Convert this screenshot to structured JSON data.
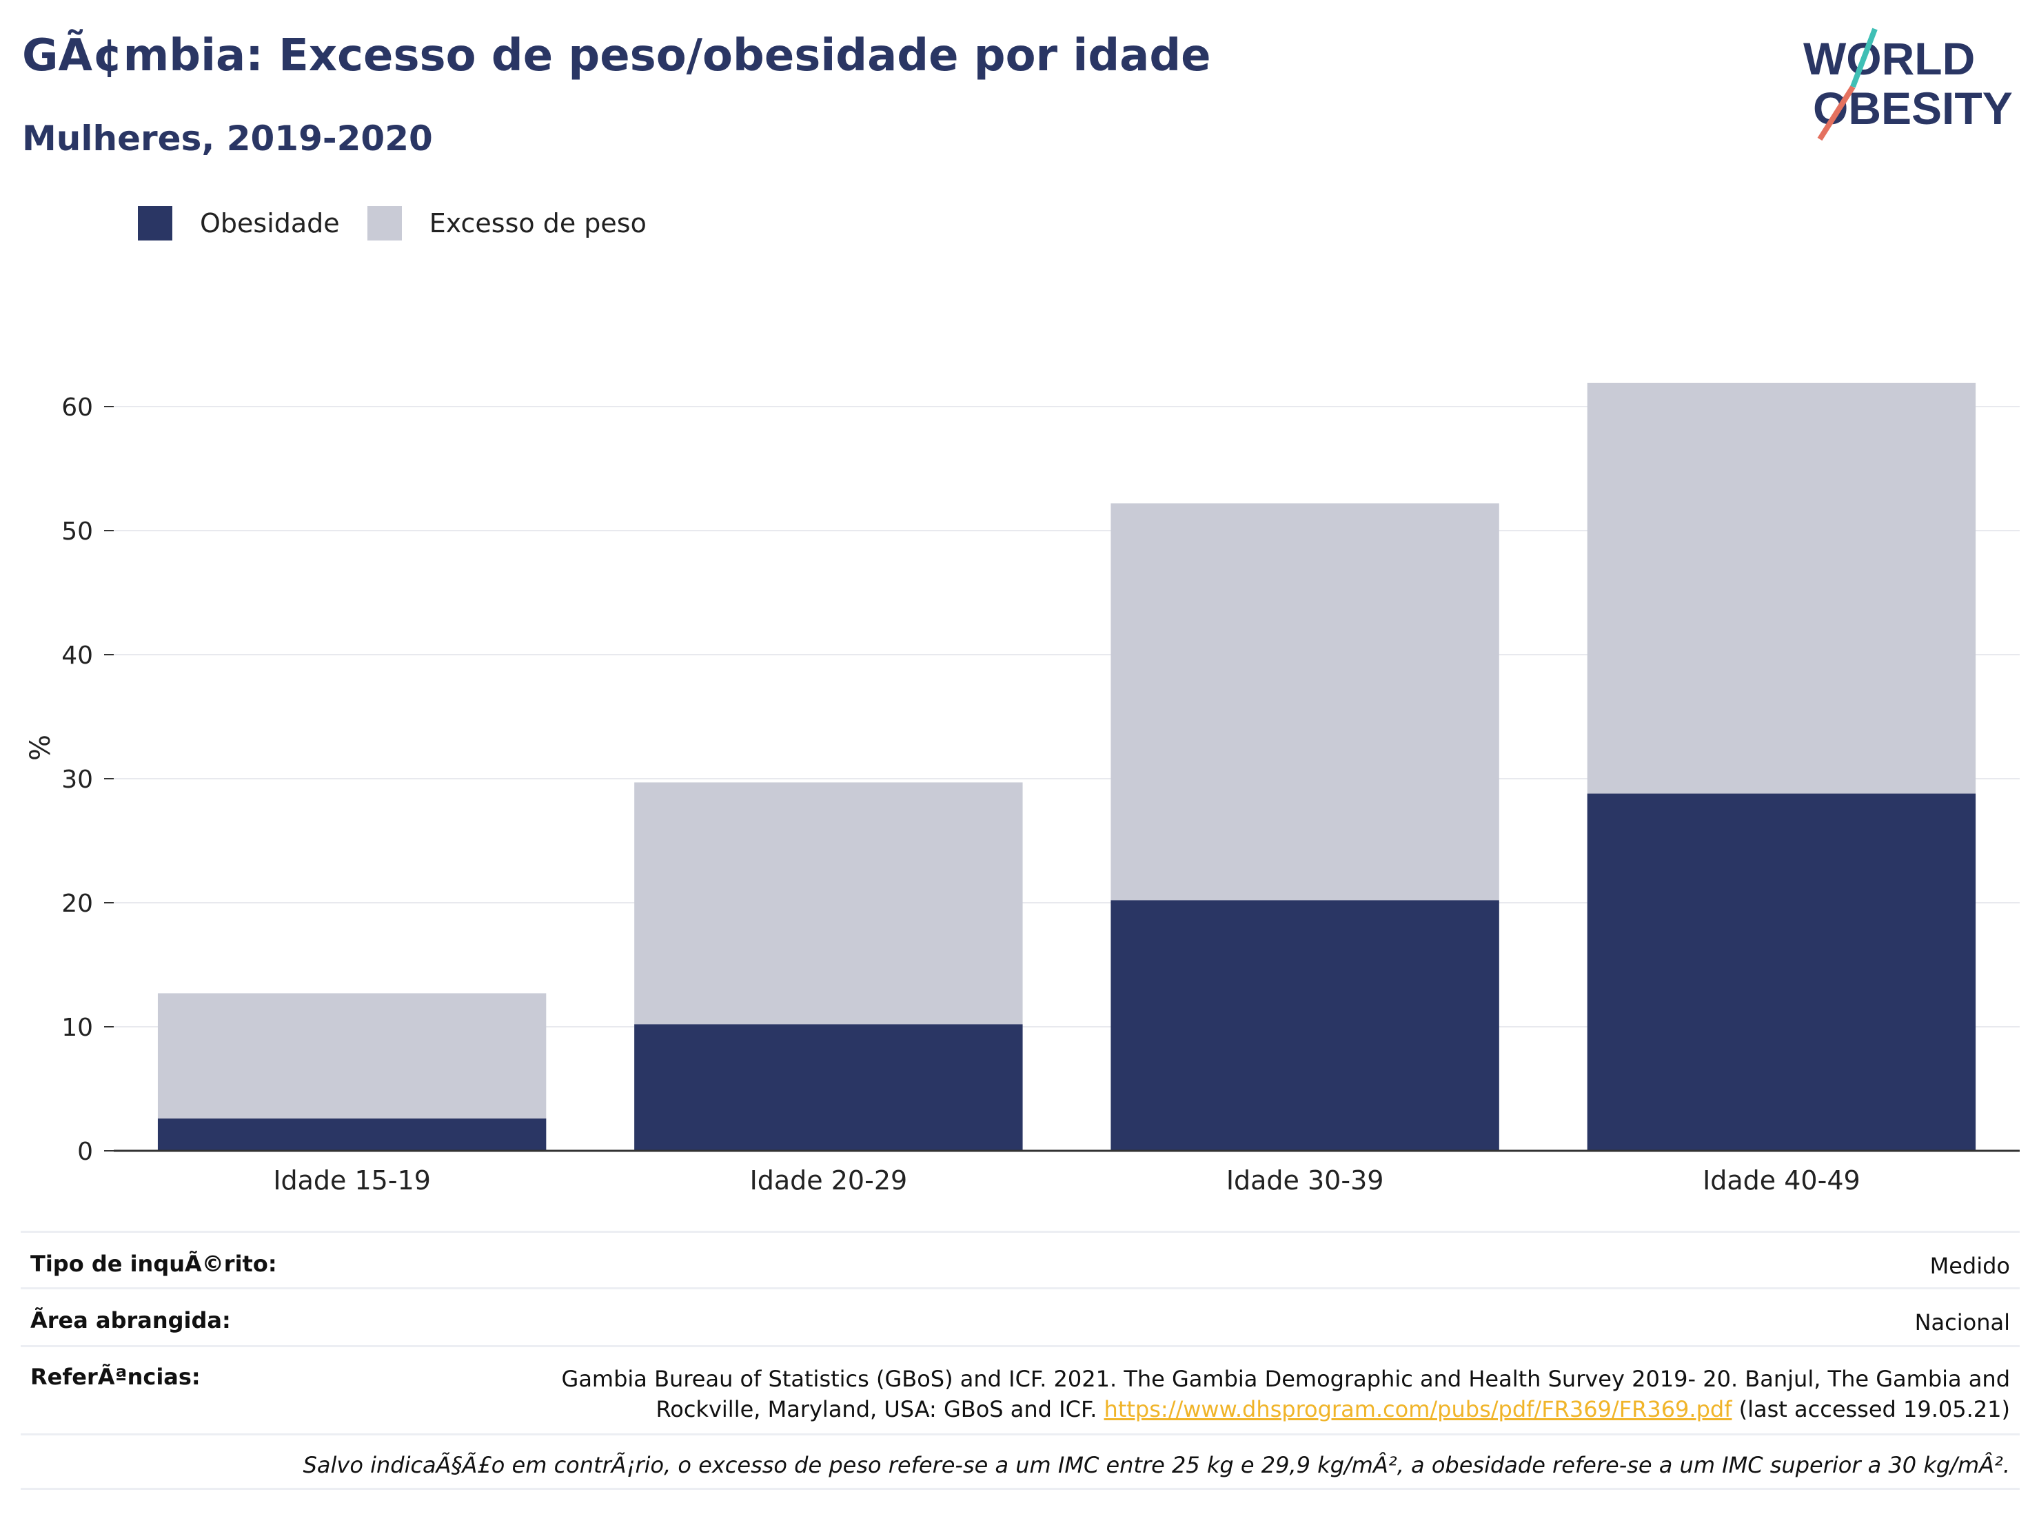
{
  "header": {
    "title": "GÃ¢mbia: Excesso de peso/obesidade por idade",
    "subtitle": "Mulheres, 2019-2020"
  },
  "logo": {
    "line1": "WORLD",
    "line2": "OBESITY"
  },
  "colors": {
    "obesity": "#2a3664",
    "overweight": "#c9cbd6",
    "accent_teal": "#3fbfb5",
    "accent_red": "#e4715f"
  },
  "chart_data": {
    "type": "bar",
    "stacked": false,
    "overlaid": true,
    "categories": [
      "Idade 15-19",
      "Idade 20-29",
      "Idade 30-39",
      "Idade 40-49"
    ],
    "series": [
      {
        "name": "Obesidade",
        "values": [
          2.6,
          10.2,
          20.2,
          28.8
        ]
      },
      {
        "name": "Excesso de peso",
        "values": [
          12.7,
          29.7,
          52.2,
          61.9
        ]
      }
    ],
    "ylabel": "%",
    "ylim": [
      0,
      65
    ],
    "yticks": [
      0,
      10,
      20,
      30,
      40,
      50,
      60
    ],
    "grid": true,
    "legend_position": "top-left"
  },
  "info": {
    "survey_type_label": "Tipo de inquÃ©rito:",
    "survey_type_value": "Medido",
    "area_label": "Ãrea abrangida:",
    "area_value": "Nacional",
    "refs_label": "ReferÃªncias:",
    "refs_text_1": "Gambia Bureau of Statistics (GBoS) and ICF. 2021. The Gambia Demographic and Health Survey 2019- 20. Banjul, The Gambia and",
    "refs_text_2": "Rockville, Maryland, USA: GBoS and ICF.",
    "refs_link": "https://www.dhsprogram.com/pubs/pdf/FR369/FR369.pdf",
    "refs_accessed": "(last accessed 19.05.21)",
    "note": "Salvo indicaÃ§Ã£o em contrÃ¡rio, o excesso de peso refere-se a um IMC entre 25 kg e 29,9 kg/mÂ², a obesidade refere-se a um IMC superior a 30 kg/mÂ²."
  }
}
